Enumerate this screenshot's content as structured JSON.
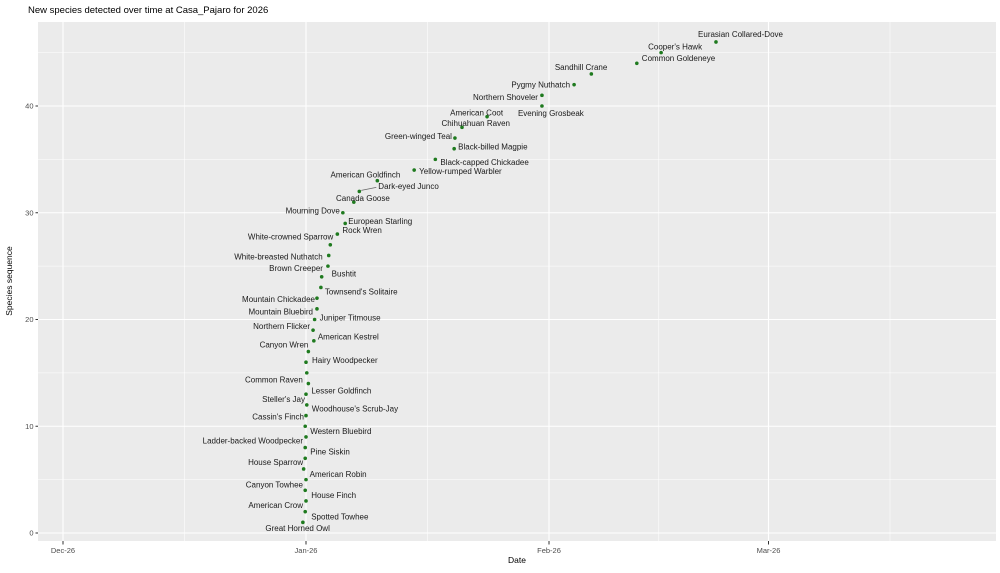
{
  "window": {
    "title": "New species detected over time at Casa_Pajaro for 2026"
  },
  "chart_data": {
    "type": "scatter",
    "title": "New species detected over time at Casa_Pajaro for 2026",
    "xlabel": "Date",
    "ylabel": "Species sequence",
    "x_axis": {
      "tick_labels": [
        "Dec-26",
        "Jan-26",
        "Feb-26",
        "Mar-26"
      ],
      "tick_days": [
        -31,
        0,
        31,
        59
      ],
      "minor_days": [
        -15.5,
        15.5,
        45,
        74.5
      ]
    },
    "y_axis": {
      "tick_labels": [
        "0",
        "10",
        "20",
        "30",
        "40"
      ],
      "tick_values": [
        0,
        10,
        20,
        30,
        40
      ],
      "minor_values": [
        5,
        15,
        25,
        35,
        45
      ],
      "ylim": [
        -0.75,
        47.9
      ]
    },
    "theme": {
      "panel_bg": "#EBEBEB",
      "grid_color": "#FFFFFF",
      "point_color": "#1F7A1F",
      "tick_label_color": "#4D4D4D",
      "label_color": "#1A1A1A",
      "tick_mark_color": "#333333",
      "grid_on": true,
      "legend": "none"
    },
    "series": [
      {
        "name": "new-species-detections",
        "points": [
          {
            "name": "Great Horned Owl",
            "seq": 1,
            "day": -0.4,
            "date": "Jan-26",
            "label_side": "L",
            "label_dx": 27,
            "label_dy": 6,
            "connector": false
          },
          {
            "name": "Spotted Towhee",
            "seq": 2,
            "day": -0.1,
            "date": "Jan-26",
            "label_side": "R",
            "label_dx": 6,
            "label_dy": 5,
            "connector": false
          },
          {
            "name": "American Crow",
            "seq": 3,
            "day": 0,
            "date": "Jan-26",
            "label_side": "L",
            "label_dx": -3,
            "label_dy": 4,
            "connector": false
          },
          {
            "name": "House Finch",
            "seq": 4,
            "day": -0.1,
            "date": "Jan-26",
            "label_side": "R",
            "label_dx": 6,
            "label_dy": 5,
            "connector": false
          },
          {
            "name": "Canyon Towhee",
            "seq": 5,
            "day": 0,
            "date": "Jan-26",
            "label_side": "L",
            "label_dx": -3,
            "label_dy": 5,
            "connector": false
          },
          {
            "name": "American Robin",
            "seq": 6,
            "day": -0.3,
            "date": "Jan-26",
            "label_side": "R",
            "label_dx": 6,
            "label_dy": 5,
            "connector": false
          },
          {
            "name": "House Sparrow",
            "seq": 7,
            "day": -0.1,
            "date": "Jan-26",
            "label_side": "L",
            "label_dx": -2,
            "label_dy": 4,
            "connector": false
          },
          {
            "name": "Pine Siskin",
            "seq": 8,
            "day": -0.1,
            "date": "Jan-26",
            "label_side": "R",
            "label_dx": 5,
            "label_dy": 4,
            "connector": false
          },
          {
            "name": "Ladder-backed Woodpecker",
            "seq": 9,
            "day": 0,
            "date": "Jan-26",
            "label_side": "L",
            "label_dx": -3,
            "label_dy": 4,
            "connector": false
          },
          {
            "name": "Western Bluebird",
            "seq": 10,
            "day": -0.1,
            "date": "Jan-26",
            "label_side": "R",
            "label_dx": 5,
            "label_dy": 5,
            "connector": false
          },
          {
            "name": "Cassin's Finch",
            "seq": 11,
            "day": 0,
            "date": "Jan-26",
            "label_side": "L",
            "label_dx": -2,
            "label_dy": 1,
            "connector": false
          },
          {
            "name": "Woodhouse's Scrub-Jay",
            "seq": 12,
            "day": 0.1,
            "date": "Jan-26",
            "label_side": "R",
            "label_dx": 5,
            "label_dy": 4,
            "connector": false
          },
          {
            "name": "Steller's Jay",
            "seq": 13,
            "day": 0,
            "date": "Jan-26",
            "label_side": "L",
            "label_dx": -1,
            "label_dy": 5,
            "connector": false
          },
          {
            "name": "Lesser Goldfinch",
            "seq": 14,
            "day": 0.3,
            "date": "Jan-26",
            "label_side": "R",
            "label_dx": 3,
            "label_dy": 7,
            "connector": false
          },
          {
            "name": "Common Raven",
            "seq": 15,
            "day": 0.1,
            "date": "Jan-26",
            "label_side": "L",
            "label_dx": -4,
            "label_dy": 7,
            "connector": false
          },
          {
            "name": "Hairy Woodpecker",
            "seq": 16,
            "day": 0,
            "date": "Jan-26",
            "label_side": "R",
            "label_dx": 6,
            "label_dy": -2,
            "connector": false
          },
          {
            "name": "Canyon Wren",
            "seq": 17,
            "day": 0.3,
            "date": "Jan-26",
            "label_side": "L",
            "label_dx": 0,
            "label_dy": -7,
            "connector": false
          },
          {
            "name": "American Kestrel",
            "seq": 18,
            "day": 1.0,
            "date": "Jan-27",
            "label_side": "R",
            "label_dx": 4,
            "label_dy": -4,
            "connector": false
          },
          {
            "name": "Northern Flicker",
            "seq": 19,
            "day": 0.9,
            "date": "Jan-27",
            "label_side": "L",
            "label_dx": -3,
            "label_dy": -4,
            "connector": false
          },
          {
            "name": "Juniper Titmouse",
            "seq": 20,
            "day": 1.1,
            "date": "Jan-27",
            "label_side": "R",
            "label_dx": 5,
            "label_dy": -2,
            "connector": false
          },
          {
            "name": "Mountain Bluebird",
            "seq": 21,
            "day": 1.4,
            "date": "Jan-27",
            "label_side": "L",
            "label_dx": -4,
            "label_dy": 3,
            "connector": false
          },
          {
            "name": "Mountain Chickadee",
            "seq": 22,
            "day": 1.4,
            "date": "Jan-27",
            "label_side": "L",
            "label_dx": -2,
            "label_dy": 1,
            "connector": false
          },
          {
            "name": "Townsend's Solitaire",
            "seq": 23,
            "day": 1.9,
            "date": "Jan-28",
            "label_side": "R",
            "label_dx": 4,
            "label_dy": 4,
            "connector": false
          },
          {
            "name": "Bushtit",
            "seq": 24,
            "day": 2.0,
            "date": "Jan-28",
            "label_side": "R",
            "label_dx": 10,
            "label_dy": -3,
            "connector": false
          },
          {
            "name": "Brown Creeper",
            "seq": 25,
            "day": 2.8,
            "date": "Jan-29",
            "label_side": "L",
            "label_dx": -5,
            "label_dy": 2,
            "connector": false
          },
          {
            "name": "White-breasted Nuthatch",
            "seq": 26,
            "day": 2.9,
            "date": "Jan-29",
            "label_side": "L",
            "label_dx": -6,
            "label_dy": 1,
            "connector": false
          },
          {
            "name": "White-crowned Sparrow",
            "seq": 27,
            "day": 3.1,
            "date": "Jan-29",
            "label_side": "L",
            "label_dx": 3,
            "label_dy": -8,
            "connector": false
          },
          {
            "name": "Rock Wren",
            "seq": 28,
            "day": 4.0,
            "date": "Jan-30",
            "label_side": "R",
            "label_dx": 5,
            "label_dy": -4,
            "connector": false
          },
          {
            "name": "European Starling",
            "seq": 29,
            "day": 5.0,
            "date": "Jan-31",
            "label_side": "R",
            "label_dx": 3,
            "label_dy": -2,
            "connector": false
          },
          {
            "name": "Mourning Dove",
            "seq": 30,
            "day": 4.7,
            "date": "Jan-31",
            "label_side": "L",
            "label_dx": -3,
            "label_dy": -2,
            "connector": false
          },
          {
            "name": "Canada Goose",
            "seq": 31,
            "day": 6.1,
            "date": "Feb-01",
            "label_side": "L",
            "label_dx": 36,
            "label_dy": -4,
            "connector": false
          },
          {
            "name": "Dark-eyed Junco",
            "seq": 32,
            "day": 6.8,
            "date": "Feb-02",
            "label_side": "R",
            "label_dx": 19,
            "label_dy": -5,
            "connector": true
          },
          {
            "name": "American Goldfinch",
            "seq": 33,
            "day": 9.1,
            "date": "Feb-04",
            "label_side": "L",
            "label_dx": 23,
            "label_dy": -6,
            "connector": false
          },
          {
            "name": "Yellow-rumped Warbler",
            "seq": 34,
            "day": 13.8,
            "date": "Feb-09",
            "label_side": "R",
            "label_dx": 5,
            "label_dy": 1,
            "connector": false
          },
          {
            "name": "Black-capped Chickadee",
            "seq": 35,
            "day": 16.5,
            "date": "Feb-11",
            "label_side": "R",
            "label_dx": 5,
            "label_dy": 3,
            "connector": false
          },
          {
            "name": "Black-billed Magpie",
            "seq": 36,
            "day": 18.9,
            "date": "Feb-14",
            "label_side": "R",
            "label_dx": 4,
            "label_dy": -2,
            "connector": false
          },
          {
            "name": "Green-winged Teal",
            "seq": 37,
            "day": 19.0,
            "date": "Feb-14",
            "label_side": "L",
            "label_dx": -3,
            "label_dy": -2,
            "connector": false
          },
          {
            "name": "Chihuahuan Raven",
            "seq": 38,
            "day": 19.9,
            "date": "Feb-15",
            "label_side": "L",
            "label_dx": 48,
            "label_dy": -4,
            "connector": false
          },
          {
            "name": "American Coot",
            "seq": 39,
            "day": 23.1,
            "date": "Feb-18",
            "label_side": "L",
            "label_dx": 16,
            "label_dy": -4,
            "connector": false
          },
          {
            "name": "Evening Grosbeak",
            "seq": 40,
            "day": 30.1,
            "date": "Feb-25",
            "label_side": "R",
            "label_dx": -24,
            "label_dy": 7,
            "connector": false
          },
          {
            "name": "Northern Shoveler",
            "seq": 41,
            "day": 30.1,
            "date": "Feb-25",
            "label_side": "L",
            "label_dx": -4,
            "label_dy": 2,
            "connector": false
          },
          {
            "name": "Pygmy Nuthatch",
            "seq": 42,
            "day": 34.2,
            "date": "Mar-01",
            "label_side": "L",
            "label_dx": -4,
            "label_dy": 0,
            "connector": false
          },
          {
            "name": "Sandhill Crane",
            "seq": 43,
            "day": 36.4,
            "date": "Mar-03",
            "label_side": "L",
            "label_dx": 16,
            "label_dy": -7,
            "connector": false
          },
          {
            "name": "Common Goldeneye",
            "seq": 44,
            "day": 42.2,
            "date": "Mar-09",
            "label_side": "R",
            "label_dx": 5,
            "label_dy": -5,
            "connector": false
          },
          {
            "name": "Cooper's Hawk",
            "seq": 45,
            "day": 45.3,
            "date": "Mar-12",
            "label_side": "L",
            "label_dx": 41,
            "label_dy": -6,
            "connector": false
          },
          {
            "name": "Eurasian Collared-Dove",
            "seq": 46,
            "day": 52.3,
            "date": "Mar-19",
            "label_side": "L",
            "label_dx": 67,
            "label_dy": -8,
            "connector": false
          }
        ]
      }
    ]
  }
}
